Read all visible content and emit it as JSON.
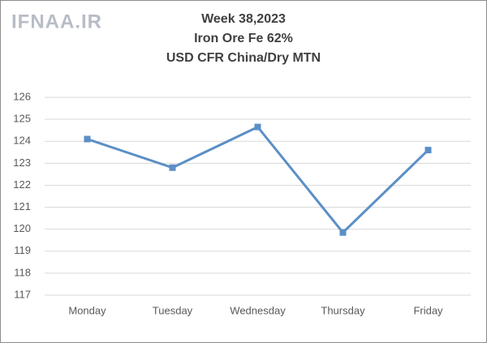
{
  "chart_data": {
    "type": "line",
    "watermark": "IFNAA.IR",
    "title": [
      "Week 38,2023",
      "Iron Ore Fe 62%",
      "USD CFR China/Dry MTN"
    ],
    "categories": [
      "Monday",
      "Tuesday",
      "Wednesday",
      "Thursday",
      "Friday"
    ],
    "series": [
      {
        "name": "Iron Ore Fe 62%",
        "color": "#5b8fc6",
        "values": [
          124.1,
          122.8,
          124.65,
          119.85,
          123.6
        ]
      }
    ],
    "ylim": [
      117,
      126
    ],
    "yticks": [
      117,
      118,
      119,
      120,
      121,
      122,
      123,
      124,
      125,
      126
    ],
    "grid": true
  }
}
